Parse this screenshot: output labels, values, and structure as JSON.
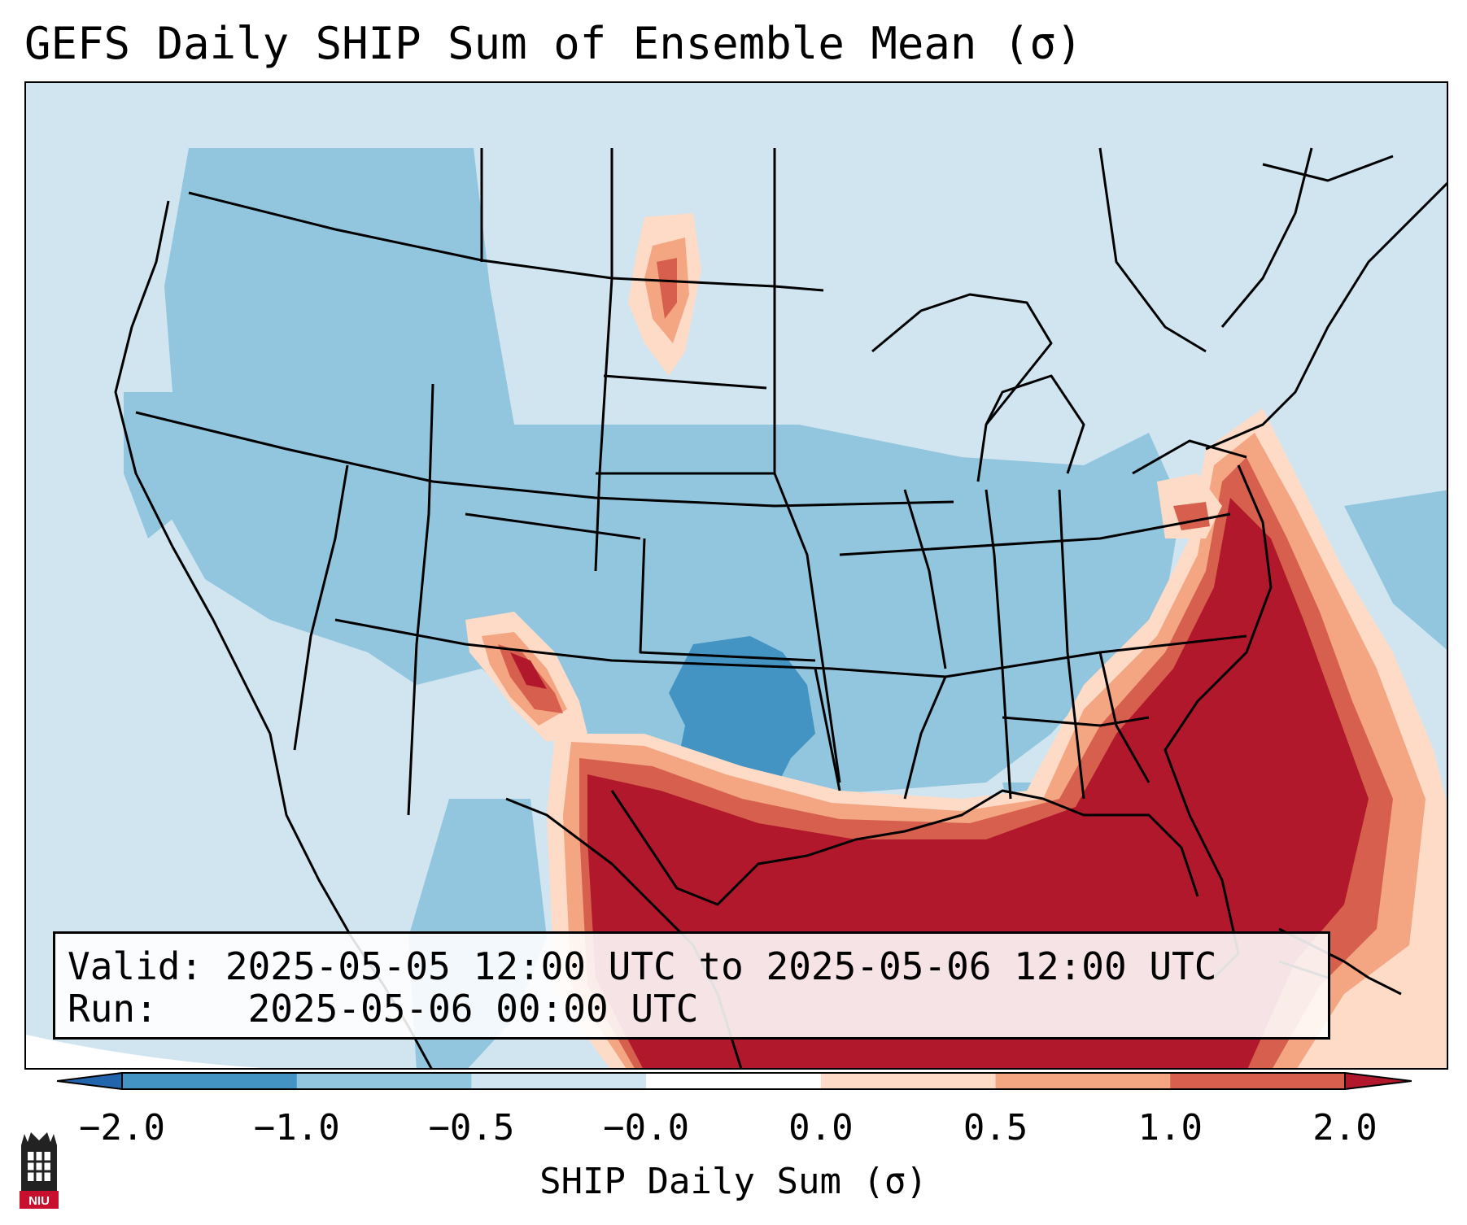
{
  "title": "GEFS Daily SHIP Sum of Ensemble Mean (σ)",
  "info": {
    "valid_label": "Valid:",
    "valid_value": "2025-05-05 12:00 UTC to 2025-05-06 12:00 UTC",
    "run_label": "Run:",
    "run_value": "2025-05-06 00:00 UTC"
  },
  "colorbar": {
    "label": "SHIP Daily Sum (σ)",
    "tick_labels": [
      "−2.0",
      "−1.0",
      "−0.5",
      "−0.0",
      "0.0",
      "0.5",
      "1.0",
      "2.0"
    ],
    "bins": [
      {
        "range": "< -2.0",
        "color": "#2166ac"
      },
      {
        "range": "-2.0 to -1.0",
        "color": "#4393c3"
      },
      {
        "range": "-1.0 to -0.5",
        "color": "#92c5de"
      },
      {
        "range": "-0.5 to -0.0",
        "color": "#d1e5f0"
      },
      {
        "range": "-0.0 to 0.0",
        "color": "#ffffff"
      },
      {
        "range": "0.0 to 0.5",
        "color": "#fddbc7"
      },
      {
        "range": "0.5 to 1.0",
        "color": "#f4a582"
      },
      {
        "range": "1.0 to 2.0",
        "color": "#d6604d"
      },
      {
        "range": "> 2.0",
        "color": "#b2182b"
      }
    ],
    "extend": "both"
  },
  "map": {
    "region": "Continental United States",
    "projection": "Lambert Conformal",
    "boundaries": [
      "coastlines",
      "state borders",
      "country borders"
    ],
    "features": [
      {
        "area": "Gulf of Mexico and Texas coast",
        "level": "> 2.0"
      },
      {
        "area": "Atlantic off the Southeast coast",
        "level": "> 2.0"
      },
      {
        "area": "Southeast New Mexico / West Texas",
        "level": "1.0 to 2.0"
      },
      {
        "area": "North Dakota",
        "level": "0.5 to 1.0"
      },
      {
        "area": "Oklahoma / North Texas",
        "level": "-2.0 to -1.0"
      },
      {
        "area": "Interior Western and Central US",
        "level": "-1.0 to -0.5"
      }
    ]
  },
  "logo": {
    "text": "NIU",
    "color": "#c8102e"
  }
}
